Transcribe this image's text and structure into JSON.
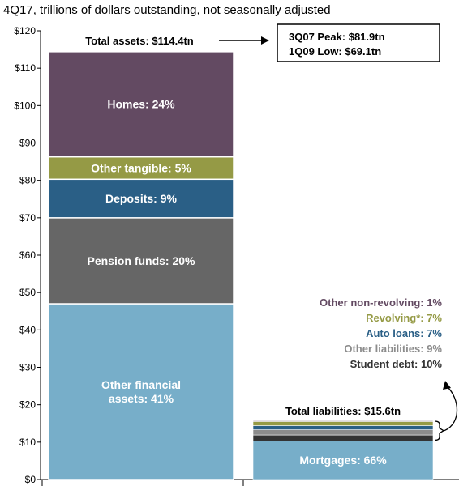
{
  "chart_data": {
    "type": "bar",
    "subtitle": "4Q17, trillions of dollars outstanding, not seasonally adjusted",
    "ylim": [
      0,
      120
    ],
    "y_ticks": [
      {
        "value": 0,
        "label": "$0"
      },
      {
        "value": 10,
        "label": "$10"
      },
      {
        "value": 20,
        "label": "$20"
      },
      {
        "value": 30,
        "label": "$30"
      },
      {
        "value": 40,
        "label": "$40"
      },
      {
        "value": 50,
        "label": "$50"
      },
      {
        "value": 60,
        "label": "$60"
      },
      {
        "value": 70,
        "label": "$70"
      },
      {
        "value": 80,
        "label": "$80"
      },
      {
        "value": 90,
        "label": "$90"
      },
      {
        "value": 100,
        "label": "$100"
      },
      {
        "value": 110,
        "label": "$110"
      },
      {
        "value": 120,
        "label": "$120"
      }
    ],
    "bars": [
      {
        "name": "assets",
        "total_value": 114.4,
        "total_label": "Total assets: $114.4tn",
        "segments": [
          {
            "label": "Other financial assets: 41%",
            "value": 47.0,
            "color": "#77aec9"
          },
          {
            "label": "Pension funds: 20%",
            "value": 23.0,
            "color": "#666666"
          },
          {
            "label": "Deposits: 9%",
            "value": 10.3,
            "color": "#2a5f86"
          },
          {
            "label": "Other tangible: 5%",
            "value": 6.0,
            "color": "#959a45"
          },
          {
            "label": "Homes: 24%",
            "value": 28.1,
            "color": "#634a62"
          }
        ]
      },
      {
        "name": "liabilities",
        "total_value": 15.6,
        "total_label": "Total liabilities: $15.6tn",
        "segments": [
          {
            "label": "Mortgages: 66%",
            "value": 10.3,
            "color": "#77aec9"
          },
          {
            "label": "Student debt: 10%",
            "value": 1.6,
            "color": "#333333"
          },
          {
            "label": "Other liabilities: 9%",
            "value": 1.4,
            "color": "#8c8c8c"
          },
          {
            "label": "Auto loans: 7%",
            "value": 1.1,
            "color": "#2a5f86"
          },
          {
            "label": "Revolving*: 7%",
            "value": 1.1,
            "color": "#959a45"
          },
          {
            "label": "Other non-revolving: 1%",
            "value": 0.2,
            "color": "#634a62"
          }
        ]
      }
    ],
    "peak_box": {
      "line1": "3Q07 Peak: $81.9tn",
      "line2": "1Q09 Low: $69.1tn"
    },
    "legend": [
      {
        "label": "Other non-revolving: 1%",
        "color": "#634a62"
      },
      {
        "label": "Revolving*: 7%",
        "color": "#959a45"
      },
      {
        "label": "Auto loans: 7%",
        "color": "#2a5f86"
      },
      {
        "label": "Other liabilities: 9%",
        "color": "#8c8c8c"
      },
      {
        "label": "Student debt: 10%",
        "color": "#333333"
      }
    ],
    "grid": false,
    "background_color": "#ffffff"
  }
}
